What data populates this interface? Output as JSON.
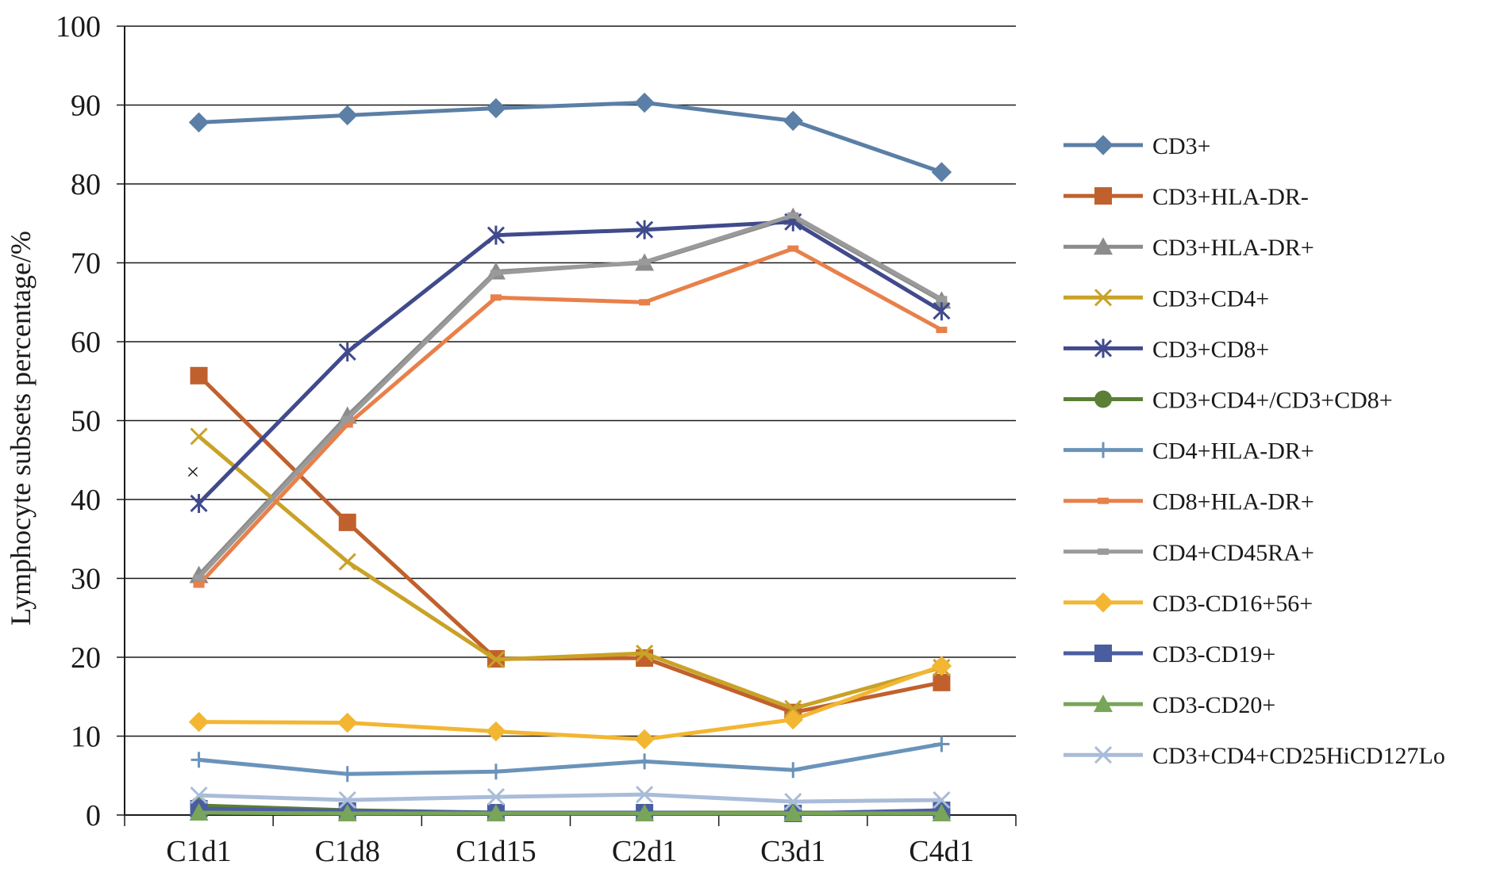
{
  "chart_data": {
    "type": "line",
    "title": "",
    "xlabel": "",
    "ylabel": "Lymphocyte subsets percentage/%",
    "categories": [
      "C1d1",
      "C1d8",
      "C1d15",
      "C2d1",
      "C3d1",
      "C4d1"
    ],
    "ylim": [
      0,
      100
    ],
    "yticks": [
      0,
      10,
      20,
      30,
      40,
      50,
      60,
      70,
      80,
      90,
      100
    ],
    "grid": "horizontal",
    "legend_position": "right",
    "annotation": "×",
    "series": [
      {
        "name": "CD3+",
        "color": "#5b7fa6",
        "marker": "diamond",
        "values": [
          87.8,
          88.7,
          89.6,
          90.3,
          88.0,
          81.5
        ]
      },
      {
        "name": "CD3+HLA-DR-",
        "color": "#c0612d",
        "marker": "square",
        "values": [
          55.7,
          37.1,
          19.8,
          19.9,
          13.0,
          16.8
        ]
      },
      {
        "name": "CD3+HLA-DR+",
        "color": "#8c8c8c",
        "marker": "triangle",
        "values": [
          30.4,
          50.6,
          68.9,
          70.0,
          75.8,
          65.2
        ]
      },
      {
        "name": "CD3+CD4+",
        "color": "#c9a227",
        "marker": "x",
        "values": [
          48.0,
          32.1,
          19.7,
          20.5,
          13.5,
          18.7
        ]
      },
      {
        "name": "CD3+CD8+",
        "color": "#404a8c",
        "marker": "asterisk",
        "values": [
          39.5,
          58.7,
          73.5,
          74.2,
          75.2,
          63.9
        ]
      },
      {
        "name": "CD3+CD4+/CD3+CD8+",
        "color": "#5b7f35",
        "marker": "circle",
        "values": [
          1.2,
          0.6,
          0.3,
          0.3,
          0.3,
          0.3
        ]
      },
      {
        "name": "CD4+HLA-DR+",
        "color": "#6a93b9",
        "marker": "plus",
        "values": [
          7.0,
          5.2,
          5.5,
          6.8,
          5.7,
          9.0
        ]
      },
      {
        "name": "CD8+HLA-DR+",
        "color": "#e8804a",
        "marker": "dash",
        "values": [
          29.2,
          49.5,
          65.6,
          65.0,
          71.8,
          61.5
        ]
      },
      {
        "name": "CD4+CD45RA+",
        "color": "#9a9a9a",
        "marker": "dash",
        "values": [
          30.1,
          50.2,
          68.7,
          70.1,
          76.0,
          65.4
        ]
      },
      {
        "name": "CD3-CD16+56+",
        "color": "#f2b632",
        "marker": "diamond",
        "values": [
          11.8,
          11.7,
          10.6,
          9.6,
          12.1,
          18.9
        ]
      },
      {
        "name": "CD3-CD19+",
        "color": "#4a5e9f",
        "marker": "square",
        "values": [
          0.8,
          0.5,
          0.3,
          0.3,
          0.2,
          0.6
        ]
      },
      {
        "name": "CD3-CD20+",
        "color": "#79a55a",
        "marker": "triangle",
        "values": [
          0.3,
          0.2,
          0.2,
          0.2,
          0.2,
          0.2
        ]
      },
      {
        "name": "CD3+CD4+CD25HiCD127Lo",
        "color": "#a9bcd8",
        "marker": "x",
        "values": [
          2.5,
          1.9,
          2.3,
          2.6,
          1.7,
          1.9
        ]
      }
    ]
  }
}
